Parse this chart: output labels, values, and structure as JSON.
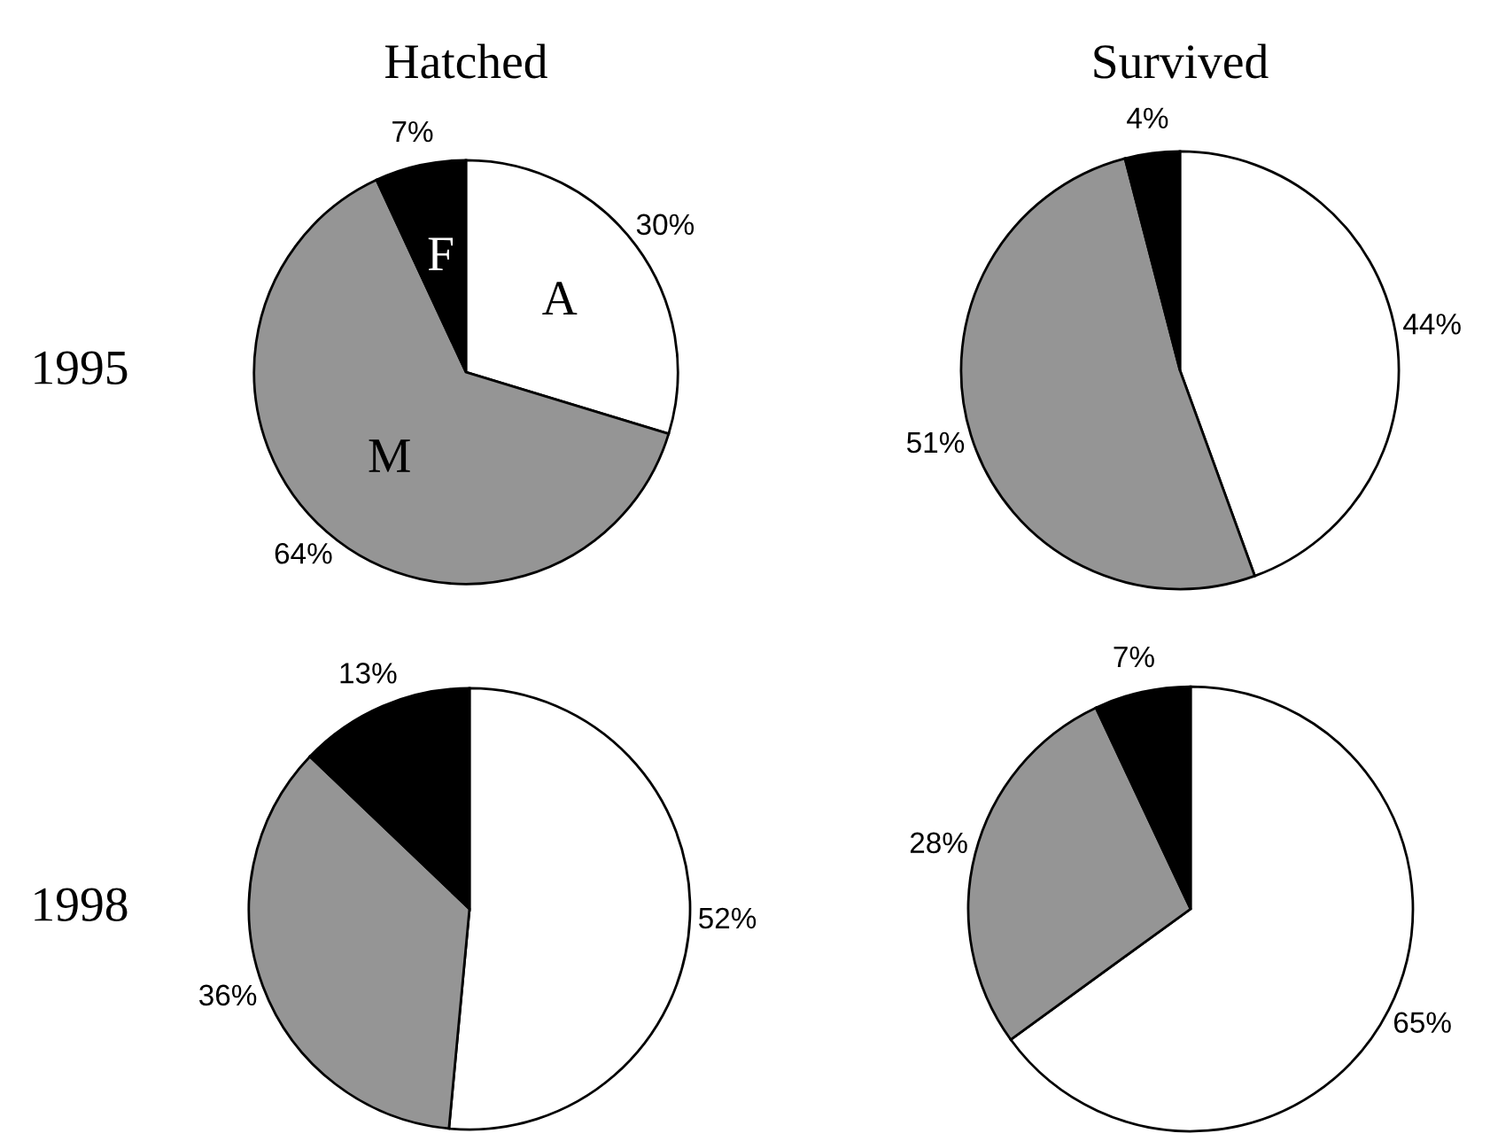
{
  "chart_data": [
    {
      "type": "pie",
      "title": "Hatched",
      "ylabel": "1995",
      "categories": [
        "A",
        "M",
        "F"
      ],
      "values": [
        30,
        64,
        7
      ],
      "colors": [
        "#ffffff",
        "#959595",
        "#000000"
      ],
      "value_labels": [
        "30%",
        "64%",
        "7%"
      ]
    },
    {
      "type": "pie",
      "title": "Survived",
      "categories": [
        null,
        null,
        null
      ],
      "values": [
        44,
        51,
        4
      ],
      "colors": [
        "#ffffff",
        "#959595",
        "#000000"
      ],
      "value_labels": [
        "44%",
        "51%",
        "4%"
      ]
    },
    {
      "type": "pie",
      "ylabel": "1998",
      "categories": [
        null,
        null,
        null
      ],
      "values": [
        52,
        36,
        13
      ],
      "colors": [
        "#ffffff",
        "#959595",
        "#000000"
      ],
      "value_labels": [
        "52%",
        "36%",
        "13%"
      ]
    },
    {
      "type": "pie",
      "categories": [
        null,
        null,
        null
      ],
      "values": [
        65,
        28,
        7
      ],
      "colors": [
        "#ffffff",
        "#959595",
        "#000000"
      ],
      "value_labels": [
        "65%",
        "28%",
        "7%"
      ]
    }
  ]
}
